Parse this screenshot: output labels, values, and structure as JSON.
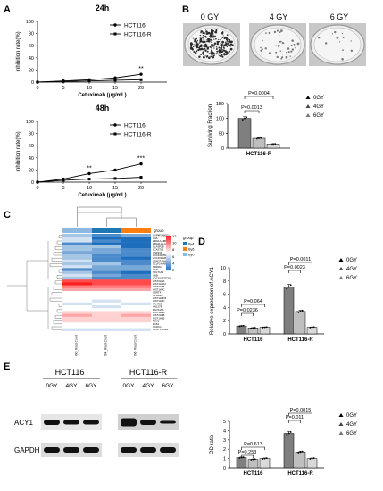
{
  "panels": {
    "A": {
      "letter": "A",
      "chart_24h": {
        "type": "line",
        "title": "24h",
        "ylabel": "Inhibition rate(%)",
        "xlabel": "Cetuximab (μg/mL)",
        "x": [
          0,
          5,
          10,
          15,
          20
        ],
        "x_ticks": [
          "0",
          "5",
          "10",
          "15",
          "20"
        ],
        "y_ticks": [
          "0",
          "20",
          "40",
          "60",
          "80",
          "100"
        ],
        "ylim": [
          0,
          100
        ],
        "series": [
          {
            "name": "HCT116",
            "values": [
              0,
              2,
              4,
              7,
              13
            ]
          },
          {
            "name": "HCT116-R",
            "values": [
              0,
              1,
              2,
              3,
              4
            ]
          }
        ],
        "annotations": [
          {
            "x": 20,
            "text": "**"
          }
        ],
        "legend": "top-right"
      },
      "chart_48h": {
        "type": "line",
        "title": "48h",
        "ylabel": "Inhibition rate(%)",
        "xlabel": "Cetuximab (μg/mL)",
        "x": [
          0,
          5,
          10,
          15,
          20
        ],
        "x_ticks": [
          "0",
          "5",
          "10",
          "15",
          "20"
        ],
        "y_ticks": [
          "0",
          "20",
          "40",
          "60",
          "80",
          "100"
        ],
        "ylim": [
          0,
          100
        ],
        "series": [
          {
            "name": "HCT116",
            "values": [
              0,
              5,
              14,
              20,
              30
            ]
          },
          {
            "name": "HCT116-R",
            "values": [
              0,
              3,
              5,
              6,
              8
            ]
          }
        ],
        "annotations": [
          {
            "x": 10,
            "text": "**"
          },
          {
            "x": 20,
            "text": "***"
          }
        ],
        "legend": "top-right"
      }
    },
    "B": {
      "letter": "B",
      "dose_labels": [
        "0 GY",
        "4 GY",
        "6 GY"
      ],
      "chart": {
        "type": "bar",
        "ylabel": "Surviving Fraction",
        "xlabel": "HCT116-R",
        "y_ticks": [
          "0",
          "50",
          "100",
          "150"
        ],
        "ylim": [
          0,
          150
        ],
        "categories": [
          "0GY",
          "4GY",
          "6GY"
        ],
        "values": [
          100,
          33,
          14
        ],
        "colors": [
          "#7f7f7f",
          "#bfbfbf",
          "#d9d9d9"
        ],
        "pvalues": [
          "P=0.0013",
          "P=0.0004"
        ],
        "legend": [
          "0GY",
          "4GY",
          "6GY"
        ]
      }
    },
    "C": {
      "letter": "C",
      "group_label": "group",
      "legend_title": "group",
      "legend_items": [
        "6y4",
        "6y6",
        "6y0"
      ],
      "legend_colors": [
        "#1f77b4",
        "#ff7f0e",
        "#8fb8e0"
      ],
      "scale_ticks": [
        "12",
        "10",
        "8",
        "6",
        "4",
        "2"
      ],
      "genes": [
        "CYP4F3-BEG1",
        "C4A",
        "HBG1A-HBFA",
        "HBA2L29-ACT3",
        "CLASP2B",
        "LCASTL5",
        "USP24K",
        "LOC441255",
        "LOC101928991",
        "CDR37-PWG56",
        "TCLF2-BAB519",
        "NRDR11",
        "LST1",
        "SOLT1A3",
        "CAB",
        "LOC101725728",
        "HIST2H4A",
        "HIST1H2A2",
        "HIST3H4B",
        "HIST1H3C",
        "CDRT4",
        "NPRDR2",
        "HIST1H4D3",
        "HIST1H4C",
        "FAM72B",
        "ANLS7B",
        "PACS1N1",
        "HIST1H4A",
        "HIST2H4B",
        "HIST1H2B",
        "H1G2",
        "PC52",
        "CCDC1",
        "GPR75-ASB3"
      ],
      "columns": [
        "6y0_Read Count",
        "6y4_Read Count",
        "6y6_Read Count"
      ],
      "matrix": [
        [
          5,
          3,
          4
        ],
        [
          6,
          2,
          2
        ],
        [
          6,
          3,
          2
        ],
        [
          3,
          2,
          2
        ],
        [
          5,
          5,
          2
        ],
        [
          5,
          4,
          3
        ],
        [
          4,
          4,
          3
        ],
        [
          5,
          3,
          3
        ],
        [
          5,
          3,
          2
        ],
        [
          6,
          3,
          3
        ],
        [
          5,
          5,
          3
        ],
        [
          6,
          4,
          4
        ],
        [
          3,
          4,
          4
        ],
        [
          5,
          3,
          2
        ],
        [
          6,
          4,
          3
        ],
        [
          5,
          3,
          3
        ],
        [
          11,
          11,
          11
        ],
        [
          12,
          11,
          11
        ],
        [
          10,
          10,
          10
        ],
        [
          9,
          9,
          9
        ],
        [
          7,
          7,
          7
        ],
        [
          7,
          7,
          7
        ],
        [
          7,
          7,
          7
        ],
        [
          7,
          6,
          7
        ],
        [
          6,
          7,
          6
        ],
        [
          7,
          6,
          7
        ],
        [
          7,
          7,
          7
        ],
        [
          8,
          8,
          8
        ],
        [
          9,
          8,
          9
        ],
        [
          8,
          8,
          8
        ],
        [
          8,
          8,
          8
        ],
        [
          7,
          7,
          7
        ],
        [
          7,
          7,
          7
        ],
        [
          6,
          6,
          6
        ]
      ]
    },
    "D": {
      "letter": "D",
      "chart": {
        "type": "bar",
        "ylabel": "Relative expression of ACY1",
        "y_ticks": [
          "0",
          "2",
          "4",
          "6",
          "8",
          "10"
        ],
        "ylim": [
          0,
          10
        ],
        "categories": [
          "HCT116",
          "HCT116-R"
        ],
        "series": [
          {
            "name": "0GY",
            "values": [
              1.2,
              7.1
            ]
          },
          {
            "name": "4GY",
            "values": [
              0.9,
              3.4
            ]
          },
          {
            "name": "6GY",
            "values": [
              1.0,
              1.0
            ]
          }
        ],
        "colors": [
          "#7f7f7f",
          "#bfbfbf",
          "#d9d9d9"
        ],
        "pvalues": [
          "P=0.064",
          "P=0.0236",
          "P=0.0011",
          "P=0.0023"
        ],
        "legend": [
          "0GY",
          "4GY",
          "6GY"
        ]
      }
    },
    "E": {
      "letter": "E",
      "group1": "HCT116",
      "group2": "HCT116-R",
      "doses": [
        "0GY",
        "4GY",
        "6GY"
      ],
      "rows": [
        "ACY1",
        "GAPDH"
      ],
      "chart": {
        "type": "bar",
        "ylabel": "OD ratio",
        "y_ticks": [
          "0",
          "1",
          "2",
          "3",
          "4",
          "5"
        ],
        "ylim": [
          0,
          5
        ],
        "categories": [
          "HCT116",
          "HCT116-R"
        ],
        "series": [
          {
            "name": "0GY",
            "values": [
              1.1,
              3.7
            ]
          },
          {
            "name": "4GY",
            "values": [
              0.9,
              1.7
            ]
          },
          {
            "name": "6GY",
            "values": [
              1.0,
              1.0
            ]
          }
        ],
        "colors": [
          "#7f7f7f",
          "#bfbfbf",
          "#d9d9d9"
        ],
        "pvalues": [
          "P=0.613",
          "P=0.253",
          "P=0.0015",
          "P=0.011"
        ],
        "legend": [
          "0GY",
          "4GY",
          "6GY"
        ]
      }
    }
  }
}
